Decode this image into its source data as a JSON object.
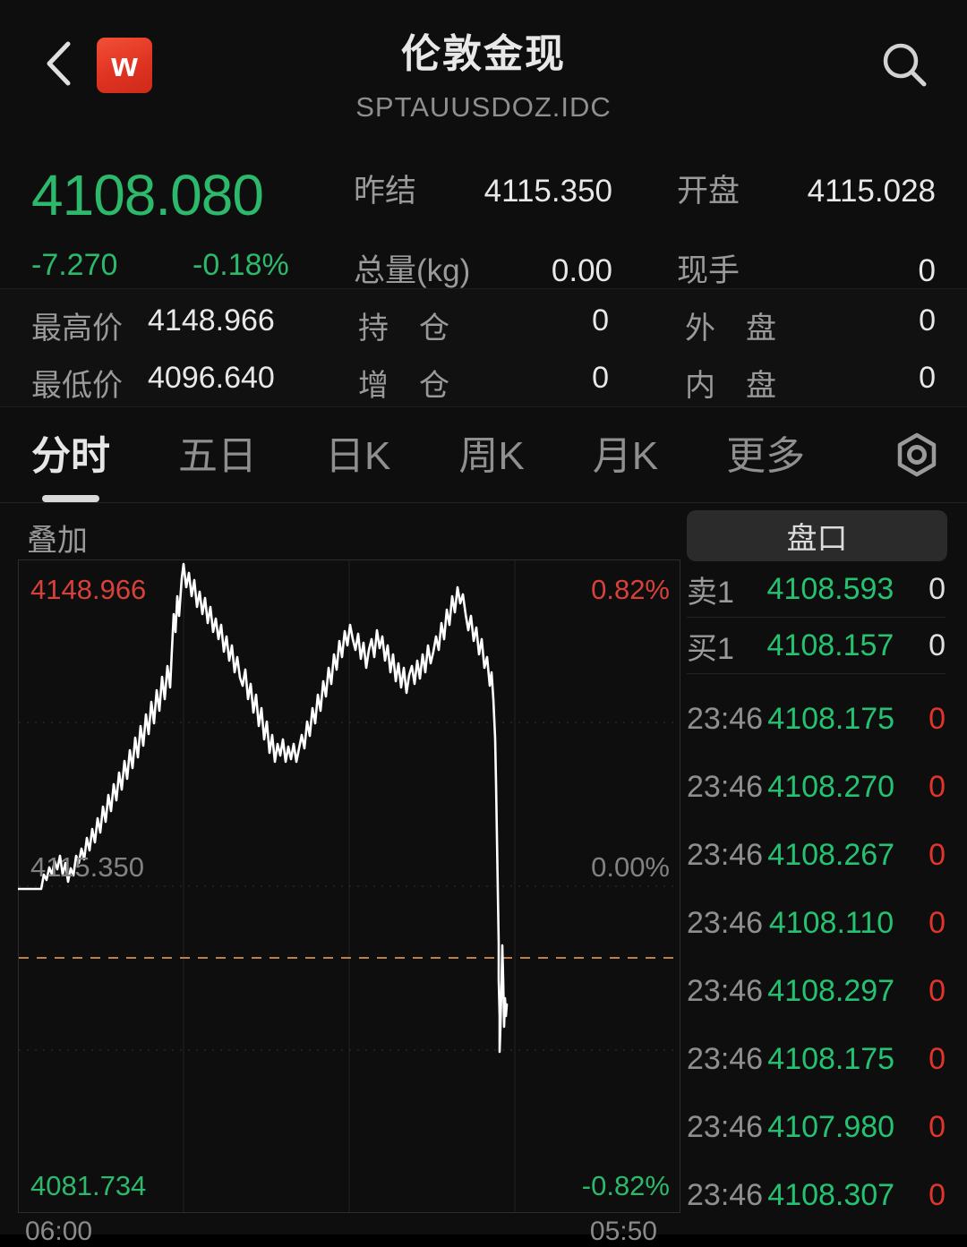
{
  "header": {
    "title": "伦敦金现",
    "subtitle": "SPTAUUSDOZ.IDC",
    "logo_text": "w"
  },
  "quote": {
    "last": "4108.080",
    "change": "-7.270",
    "change_pct": "-0.18%",
    "down_color": "#2cb96c",
    "up_color": "#d8413a",
    "fields": [
      {
        "label": "昨结",
        "value": "4115.350"
      },
      {
        "label": "开盘",
        "value": "4115.028"
      },
      {
        "label": "总量(kg)",
        "value": "0.00"
      },
      {
        "label": "现手",
        "value": "0"
      }
    ],
    "stats": [
      {
        "label": "最高价",
        "value": "4148.966"
      },
      {
        "label": "持　仓",
        "value": "0"
      },
      {
        "label": "外　盘",
        "value": "0"
      },
      {
        "label": "最低价",
        "value": "4096.640"
      },
      {
        "label": "增　仓",
        "value": "0"
      },
      {
        "label": "内　盘",
        "value": "0"
      }
    ]
  },
  "tabs": {
    "items": [
      "分时",
      "五日",
      "日K",
      "周K",
      "月K",
      "更多"
    ],
    "active": "分时"
  },
  "chart": {
    "overlay_label": "叠加",
    "labels": {
      "high": "4148.966",
      "high_pct": "0.82%",
      "mid": "4115.350",
      "mid_pct": "0.00%",
      "low": "4081.734",
      "low_pct": "-0.82%",
      "x_left": "06:00",
      "x_right": "05:50"
    },
    "colors": {
      "line": "#ffffff",
      "last_price_dash": "#bd8049",
      "up": "#d8413a",
      "down": "#2cb96c"
    },
    "chart_data": {
      "type": "line",
      "title": "分时 intraday price line",
      "x_labels": [
        "06:00",
        "05:50"
      ],
      "y_axis_top": 4148.966,
      "y_axis_middle": 4115.35,
      "y_axis_bottom": 4081.734,
      "y_axis_top_pct": "0.82%",
      "y_axis_middle_pct": "0.00%",
      "y_axis_bottom_pct": "-0.82%",
      "prev_close": 4115.35,
      "last_price": 4108.08,
      "session_high": 4148.966,
      "session_low": 4096.64,
      "grid": "4x4, dotted horizontals, dashed last-price line",
      "line_points_px": "0,368 26,368 29,352 32,358 35,344 38,352 41,337 44,346 47,331 50,352 53,339 56,360 59,345 62,353 65,331 68,339 71,323 74,335 77,311 80,325 83,301 86,316 89,289 92,305 95,276 98,293 101,263 104,281 107,251 110,269 113,238 116,257 119,225 122,245 125,213 128,233 131,199 134,221 137,186 140,208 143,173 146,195 149,159 152,183 155,146 158,169 161,131 164,156 167,119 170,143 172,101 174,61 176,81 178,41 180,63 183,21 185,5 188,31 191,15 194,41 197,23 200,53 203,36 206,61 209,43 212,71 215,53 218,81 221,66 224,89 227,73 230,103 233,86 236,113 239,96 242,126 245,109 248,132 251,141 254,123 257,156 260,139 263,171 266,151 269,186 272,166 275,201 278,181 281,216 284,196 287,226 290,206 293,219 296,201 299,226 302,209 305,223 308,206 311,226 314,211 317,196 320,211 323,181 326,197 329,166 332,183 335,151 338,169 341,136 344,153 347,121 350,139 353,106 356,123 359,91 362,109 365,80 368,96 371,73 374,89 377,101 380,83 383,111 386,93 389,121 392,101 395,89 398,109 401,79 404,99 407,86 410,113 413,96 416,126 419,106 422,136 425,116 428,143 431,121 434,149 437,129 440,119 443,139 446,113 449,133 452,106 455,126 458,96 461,116 464,103 467,86 470,101 473,71 476,89 479,56 482,73 485,41 488,59 491,31 494,49 497,39 500,61 503,79 506,63 509,91 512,76 515,106 518,89 521,121 524,109 527,141 529,126 531,156 533,200 534,250 535,310 536,370 537,430 537,470 538,510 538,550 539,520 540,480 541,431 542,470 543,522 544,490 545,510 546,497"
    }
  },
  "panel": {
    "title": "盘口",
    "sell": {
      "label": "卖1",
      "price": "4108.593",
      "volume": "0"
    },
    "buy": {
      "label": "买1",
      "price": "4108.157",
      "volume": "0"
    },
    "trades": [
      {
        "time": "23:46",
        "price": "4108.175",
        "volume": "0"
      },
      {
        "time": "23:46",
        "price": "4108.270",
        "volume": "0"
      },
      {
        "time": "23:46",
        "price": "4108.267",
        "volume": "0"
      },
      {
        "time": "23:46",
        "price": "4108.110",
        "volume": "0"
      },
      {
        "time": "23:46",
        "price": "4108.297",
        "volume": "0"
      },
      {
        "time": "23:46",
        "price": "4108.175",
        "volume": "0"
      },
      {
        "time": "23:46",
        "price": "4107.980",
        "volume": "0"
      },
      {
        "time": "23:46",
        "price": "4108.307",
        "volume": "0"
      }
    ]
  }
}
